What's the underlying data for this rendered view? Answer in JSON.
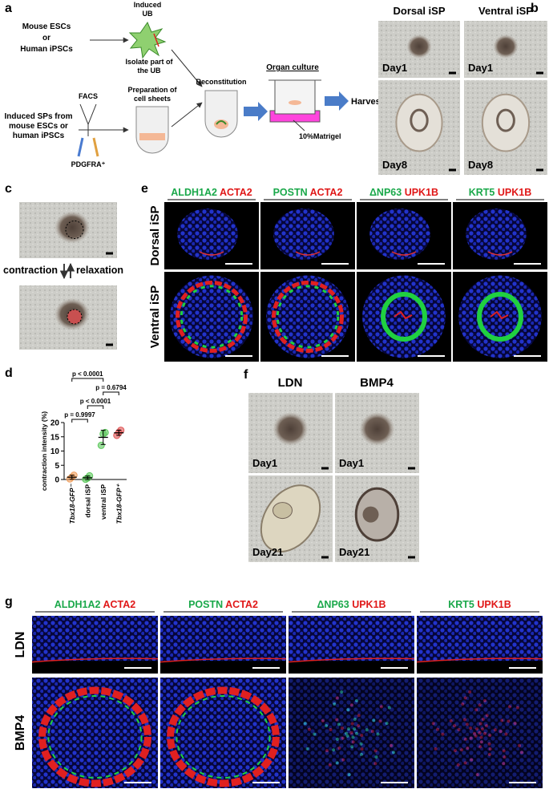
{
  "panel_a": {
    "label": "a",
    "source": [
      "Mouse ESCs",
      "or",
      "Human iPSCs"
    ],
    "ub": [
      "Induced",
      "UB"
    ],
    "isolate": [
      "Isolate part of",
      "the UB"
    ],
    "sp": [
      "Induced SPs from",
      "mouse ESCs or",
      "human iPSCs"
    ],
    "facs": "FACS",
    "pdgfra": "PDGFRA⁺",
    "sheets": [
      "Preparation of",
      "cell sheets"
    ],
    "reconstitution": "Reconstitution",
    "organ_culture": "Organ culture",
    "harvest": "Harvest",
    "matrigel": "10%Matrigel"
  },
  "panel_b": {
    "label": "b",
    "columns": [
      "Dorsal iSP",
      "Ventral iSP"
    ],
    "days": [
      [
        "Day1",
        "Day1"
      ],
      [
        "Day8",
        "Day8"
      ]
    ]
  },
  "panel_c": {
    "label": "c",
    "contraction": "contraction",
    "relaxation": "relaxation"
  },
  "panel_e": {
    "label": "e",
    "markers": [
      [
        "ALDH1A2",
        "ACTA2"
      ],
      [
        "POSTN",
        "ACTA2"
      ],
      [
        "ΔNP63",
        "UPK1B"
      ],
      [
        "KRT5",
        "UPK1B"
      ]
    ],
    "rows": [
      "Dorsal iSP",
      "Ventral iSP"
    ]
  },
  "chart_data": {
    "type": "dotplot",
    "label": "d",
    "ylabel": "contraction intensity (%)",
    "categories": [
      "Tbx18-GFP⁻",
      "dorsal iSP",
      "ventral iSP",
      "Tbx18-GFP⁺"
    ],
    "colors": [
      "#f0a060",
      "#5cc85c",
      "#5cc85c",
      "#e05555"
    ],
    "values": [
      0.8,
      0.6,
      14.8,
      16.4
    ],
    "errors": [
      0.7,
      0.6,
      2.5,
      0.9
    ],
    "points": [
      [
        0.2,
        0.8,
        1.5
      ],
      [
        0.1,
        0.5,
        1.3
      ],
      [
        12,
        16,
        16.5
      ],
      [
        15.5,
        16.5,
        17.3
      ]
    ],
    "ylim": [
      0,
      20
    ],
    "yticks": [
      0,
      5,
      10,
      15,
      20
    ],
    "comparisons": [
      {
        "from": 0,
        "to": 2,
        "label": "p < 0.0001"
      },
      {
        "from": 2,
        "to": 3,
        "label": "p = 0.6794"
      },
      {
        "from": 1,
        "to": 2,
        "label": "p < 0.0001"
      },
      {
        "from": 0,
        "to": 1,
        "label": "p = 0.9997"
      }
    ]
  },
  "panel_f": {
    "label": "f",
    "columns": [
      "LDN",
      "BMP4"
    ],
    "days": [
      [
        "Day1",
        "Day1"
      ],
      [
        "Day21",
        "Day21"
      ]
    ]
  },
  "panel_g": {
    "label": "g",
    "markers": [
      [
        "ALDH1A2",
        "ACTA2"
      ],
      [
        "POSTN",
        "ACTA2"
      ],
      [
        "ΔNP63",
        "UPK1B"
      ],
      [
        "KRT5",
        "UPK1B"
      ]
    ],
    "rows": [
      "LDN",
      "BMP4"
    ]
  }
}
